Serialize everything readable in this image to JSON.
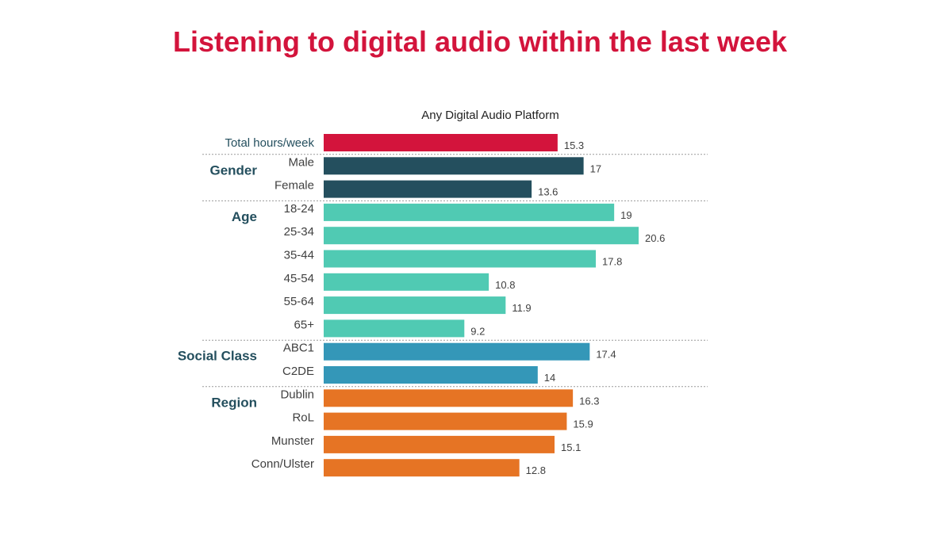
{
  "title": "Listening to digital audio within the last week",
  "chart_data": {
    "type": "bar",
    "orientation": "horizontal",
    "title": "Listening to digital audio within the last week",
    "subtitle": "Any Digital Audio Platform",
    "xlim": [
      0,
      20.6
    ],
    "grid": false,
    "legend": "none",
    "groups": [
      {
        "name": "",
        "color": "#D3143C",
        "bars": [
          {
            "label": "Total hours/week",
            "value": 15.3,
            "value_label": "15.3"
          }
        ]
      },
      {
        "name": "Gender",
        "color": "#244F5E",
        "bars": [
          {
            "label": "Male",
            "value": 17,
            "value_label": "17"
          },
          {
            "label": "Female",
            "value": 13.6,
            "value_label": "13.6"
          }
        ]
      },
      {
        "name": "Age",
        "color": "#50CAB3",
        "bars": [
          {
            "label": "18-24",
            "value": 19,
            "value_label": "19"
          },
          {
            "label": "25-34",
            "value": 20.6,
            "value_label": "20.6"
          },
          {
            "label": "35-44",
            "value": 17.8,
            "value_label": "17.8"
          },
          {
            "label": "45-54",
            "value": 10.8,
            "value_label": "10.8"
          },
          {
            "label": "55-64",
            "value": 11.9,
            "value_label": "11.9"
          },
          {
            "label": "65+",
            "value": 9.2,
            "value_label": "9.2"
          }
        ]
      },
      {
        "name": "Social Class",
        "color": "#3497B8",
        "bars": [
          {
            "label": "ABC1",
            "value": 17.4,
            "value_label": "17.4"
          },
          {
            "label": "C2DE",
            "value": 14,
            "value_label": "14"
          }
        ]
      },
      {
        "name": "Region",
        "color": "#E67424",
        "bars": [
          {
            "label": "Dublin",
            "value": 16.3,
            "value_label": "16.3"
          },
          {
            "label": "RoL",
            "value": 15.9,
            "value_label": "15.9"
          },
          {
            "label": "Munster",
            "value": 15.1,
            "value_label": "15.1"
          },
          {
            "label": "Conn/Ulster",
            "value": 12.8,
            "value_label": "12.8"
          }
        ]
      }
    ]
  },
  "colors": {
    "title": "#D3143C",
    "text": "#404040",
    "value_text": "#404040",
    "group_text": "#244F5E",
    "separator": "#9A9A9A"
  }
}
